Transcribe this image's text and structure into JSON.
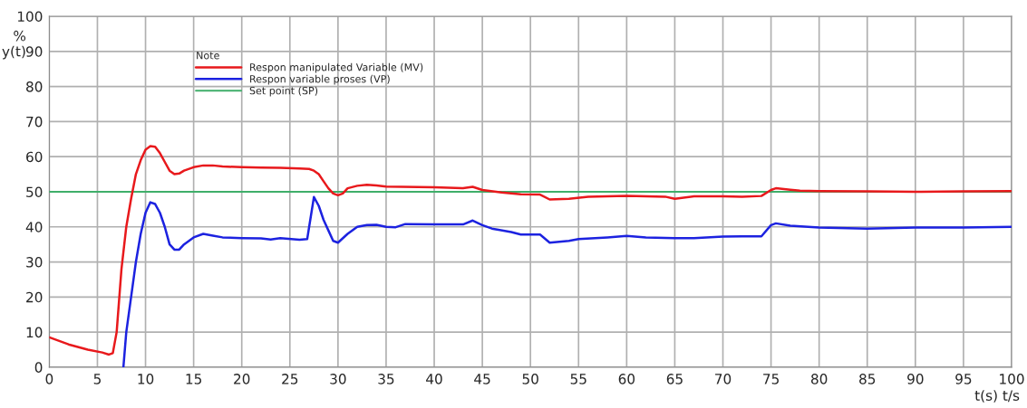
{
  "chart_data": {
    "type": "line",
    "xlabel": "t(s) t/s",
    "ylabel": "%\ny(t)",
    "legend_title": "Note",
    "legend": "top left",
    "grid": true,
    "xlim": [
      0,
      100
    ],
    "ylim": [
      0,
      100
    ],
    "xticks": [
      0,
      5,
      10,
      15,
      20,
      25,
      30,
      35,
      40,
      45,
      50,
      55,
      60,
      65,
      70,
      75,
      80,
      85,
      90,
      95,
      100
    ],
    "yticks": [
      0,
      10,
      20,
      30,
      40,
      50,
      60,
      70,
      80,
      90,
      100
    ],
    "series": [
      {
        "name": "Respon manipulated Variable (MV)",
        "color": "#e8191c",
        "x": [
          0,
          2,
          4,
          5.5,
          6.2,
          6.6,
          7,
          7.5,
          8,
          8.5,
          9,
          9.5,
          10,
          10.5,
          11,
          11.5,
          12,
          12.5,
          13,
          13.5,
          14,
          15,
          16,
          17,
          18,
          20,
          22,
          24,
          26,
          27,
          27.5,
          28,
          28.5,
          29,
          29.5,
          30,
          30.5,
          31,
          32,
          33,
          34,
          35,
          40,
          43,
          44,
          45,
          47,
          49,
          51,
          52,
          54,
          56,
          60,
          64,
          65,
          67,
          70,
          72,
          74,
          75,
          75.5,
          77,
          78,
          80,
          85,
          90,
          95,
          100
        ],
        "values": [
          8.5,
          6.5,
          5,
          4.2,
          3.6,
          4,
          10,
          28,
          40,
          48,
          55,
          59,
          62,
          63,
          62.8,
          61,
          58.5,
          56,
          55,
          55.2,
          56,
          57,
          57.5,
          57.5,
          57.2,
          57,
          56.9,
          56.8,
          56.6,
          56.5,
          56,
          55,
          53,
          51,
          49.5,
          49,
          49.5,
          51,
          51.7,
          52,
          51.8,
          51.5,
          51.3,
          51,
          51.4,
          50.5,
          49.8,
          49.3,
          49.2,
          47.8,
          48,
          48.6,
          48.8,
          48.6,
          48,
          48.7,
          48.7,
          48.6,
          48.8,
          50.5,
          51,
          50.6,
          50.3,
          50.2,
          50.1,
          50,
          50.1,
          50.2
        ]
      },
      {
        "name": "Respon variable proses (VP)",
        "color": "#1c22e0",
        "x": [
          7.7,
          8,
          8.5,
          9,
          9.5,
          10,
          10.5,
          11,
          11.5,
          12,
          12.5,
          13,
          13.5,
          14,
          15,
          16,
          17,
          18,
          20,
          22,
          23,
          24,
          26,
          26.8,
          27.5,
          28,
          28.5,
          29,
          29.5,
          30,
          31,
          32,
          33,
          34,
          35,
          36,
          37,
          40,
          43,
          44,
          45,
          46,
          48,
          49,
          51,
          52,
          54,
          55,
          58,
          60,
          62,
          65,
          67,
          70,
          72,
          74,
          75,
          75.5,
          77,
          80,
          85,
          90,
          95,
          100
        ],
        "values": [
          0,
          10,
          20,
          30,
          38,
          44,
          47,
          46.5,
          44,
          40,
          35,
          33.5,
          33.5,
          35,
          37,
          38,
          37.5,
          37,
          36.8,
          36.7,
          36.4,
          36.8,
          36.3,
          36.5,
          48.5,
          46,
          42,
          39,
          36,
          35.5,
          38,
          40,
          40.5,
          40.6,
          40,
          39.9,
          40.8,
          40.7,
          40.7,
          41.8,
          40.5,
          39.5,
          38.5,
          37.8,
          37.8,
          35.5,
          36,
          36.5,
          37,
          37.4,
          37,
          36.8,
          36.8,
          37.2,
          37.3,
          37.3,
          40.5,
          41,
          40.3,
          39.8,
          39.5,
          39.8,
          39.8,
          40
        ]
      },
      {
        "name": "Set point (SP)",
        "color": "#3fae6a",
        "x": [
          0,
          100
        ],
        "values": [
          50,
          50
        ]
      }
    ]
  }
}
